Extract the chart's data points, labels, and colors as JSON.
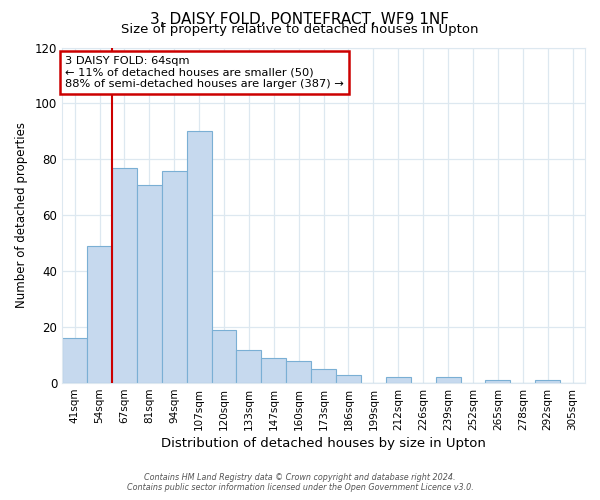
{
  "title": "3, DAISY FOLD, PONTEFRACT, WF9 1NF",
  "subtitle": "Size of property relative to detached houses in Upton",
  "xlabel": "Distribution of detached houses by size in Upton",
  "ylabel": "Number of detached properties",
  "footer_lines": [
    "Contains HM Land Registry data © Crown copyright and database right 2024.",
    "Contains public sector information licensed under the Open Government Licence v3.0."
  ],
  "bar_labels": [
    "41sqm",
    "54sqm",
    "67sqm",
    "81sqm",
    "94sqm",
    "107sqm",
    "120sqm",
    "133sqm",
    "147sqm",
    "160sqm",
    "173sqm",
    "186sqm",
    "199sqm",
    "212sqm",
    "226sqm",
    "239sqm",
    "252sqm",
    "265sqm",
    "278sqm",
    "292sqm",
    "305sqm"
  ],
  "bar_values": [
    16,
    49,
    77,
    71,
    76,
    90,
    19,
    12,
    9,
    8,
    5,
    3,
    0,
    2,
    0,
    2,
    0,
    1,
    0,
    1,
    0
  ],
  "bar_color": "#c6d9ee",
  "bar_edge_color": "#7aafd4",
  "ylim": [
    0,
    120
  ],
  "yticks": [
    0,
    20,
    40,
    60,
    80,
    100,
    120
  ],
  "vline_x": 1.5,
  "vline_color": "#cc0000",
  "annotation_text": "3 DAISY FOLD: 64sqm\n← 11% of detached houses are smaller (50)\n88% of semi-detached houses are larger (387) →",
  "annotation_box_color": "#ffffff",
  "annotation_box_edge_color": "#cc0000",
  "background_color": "#ffffff",
  "grid_color": "#dde8f0"
}
